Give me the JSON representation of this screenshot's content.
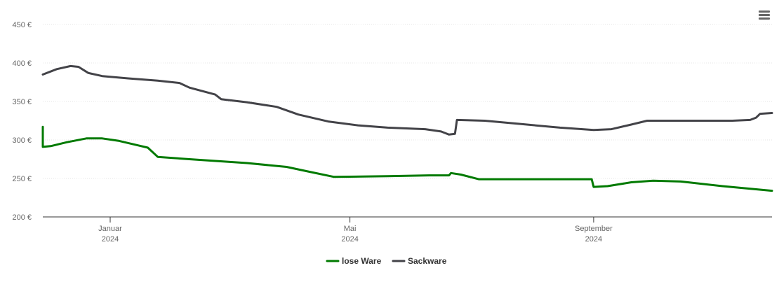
{
  "menu": {
    "icon": "hamburger-menu-icon"
  },
  "chart_data": {
    "type": "line",
    "title": "",
    "xlabel": "",
    "ylabel": "",
    "ylim": [
      200,
      450
    ],
    "y_ticks": [
      "200 €",
      "250 €",
      "300 €",
      "350 €",
      "400 €",
      "450 €"
    ],
    "x_ticks": [
      {
        "date": "2024-01-01",
        "month": "Januar",
        "year": "2024"
      },
      {
        "date": "2024-05-01",
        "month": "Mai",
        "year": "2024"
      },
      {
        "date": "2024-09-01",
        "month": "September",
        "year": "2024"
      }
    ],
    "xlim": [
      "2023-11-28",
      "2024-11-30"
    ],
    "grid": true,
    "legend_position": "bottom-center",
    "series": [
      {
        "name": "lose Ware",
        "color": "#007a00",
        "points": [
          [
            "2023-11-28",
            317
          ],
          [
            "2023-11-28",
            291
          ],
          [
            "2023-12-02",
            292
          ],
          [
            "2023-12-10",
            297
          ],
          [
            "2023-12-20",
            302
          ],
          [
            "2023-12-28",
            302
          ],
          [
            "2024-01-05",
            299
          ],
          [
            "2024-01-15",
            293
          ],
          [
            "2024-01-20",
            290
          ],
          [
            "2024-01-25",
            278
          ],
          [
            "2024-02-10",
            275
          ],
          [
            "2024-03-10",
            270
          ],
          [
            "2024-03-30",
            265
          ],
          [
            "2024-04-10",
            259
          ],
          [
            "2024-04-23",
            252
          ],
          [
            "2024-05-20",
            253
          ],
          [
            "2024-06-10",
            254
          ],
          [
            "2024-06-20",
            254
          ],
          [
            "2024-06-21",
            257
          ],
          [
            "2024-06-26",
            255
          ],
          [
            "2024-07-05",
            249
          ],
          [
            "2024-07-25",
            249
          ],
          [
            "2024-08-31",
            249
          ],
          [
            "2024-09-01",
            239
          ],
          [
            "2024-09-08",
            240
          ],
          [
            "2024-09-20",
            245
          ],
          [
            "2024-10-01",
            247
          ],
          [
            "2024-10-15",
            246
          ],
          [
            "2024-11-05",
            240
          ],
          [
            "2024-11-30",
            234
          ]
        ]
      },
      {
        "name": "Sackware",
        "color": "#434348",
        "points": [
          [
            "2023-11-28",
            385
          ],
          [
            "2023-12-05",
            392
          ],
          [
            "2023-12-12",
            396
          ],
          [
            "2023-12-16",
            395
          ],
          [
            "2023-12-21",
            387
          ],
          [
            "2023-12-28",
            383
          ],
          [
            "2024-01-10",
            380
          ],
          [
            "2024-01-25",
            377
          ],
          [
            "2024-02-05",
            374
          ],
          [
            "2024-02-10",
            368
          ],
          [
            "2024-02-23",
            359
          ],
          [
            "2024-02-26",
            353
          ],
          [
            "2024-03-10",
            349
          ],
          [
            "2024-03-25",
            343
          ],
          [
            "2024-04-05",
            333
          ],
          [
            "2024-04-20",
            324
          ],
          [
            "2024-05-05",
            319
          ],
          [
            "2024-05-20",
            316
          ],
          [
            "2024-06-08",
            314
          ],
          [
            "2024-06-16",
            311
          ],
          [
            "2024-06-20",
            307
          ],
          [
            "2024-06-23",
            308
          ],
          [
            "2024-06-24",
            326
          ],
          [
            "2024-07-08",
            325
          ],
          [
            "2024-07-25",
            321
          ],
          [
            "2024-08-15",
            316
          ],
          [
            "2024-09-01",
            313
          ],
          [
            "2024-09-10",
            314
          ],
          [
            "2024-09-20",
            320
          ],
          [
            "2024-09-28",
            325
          ],
          [
            "2024-10-15",
            325
          ],
          [
            "2024-11-10",
            325
          ],
          [
            "2024-11-19",
            326
          ],
          [
            "2024-11-22",
            329
          ],
          [
            "2024-11-24",
            334
          ],
          [
            "2024-11-30",
            335
          ]
        ]
      }
    ]
  }
}
